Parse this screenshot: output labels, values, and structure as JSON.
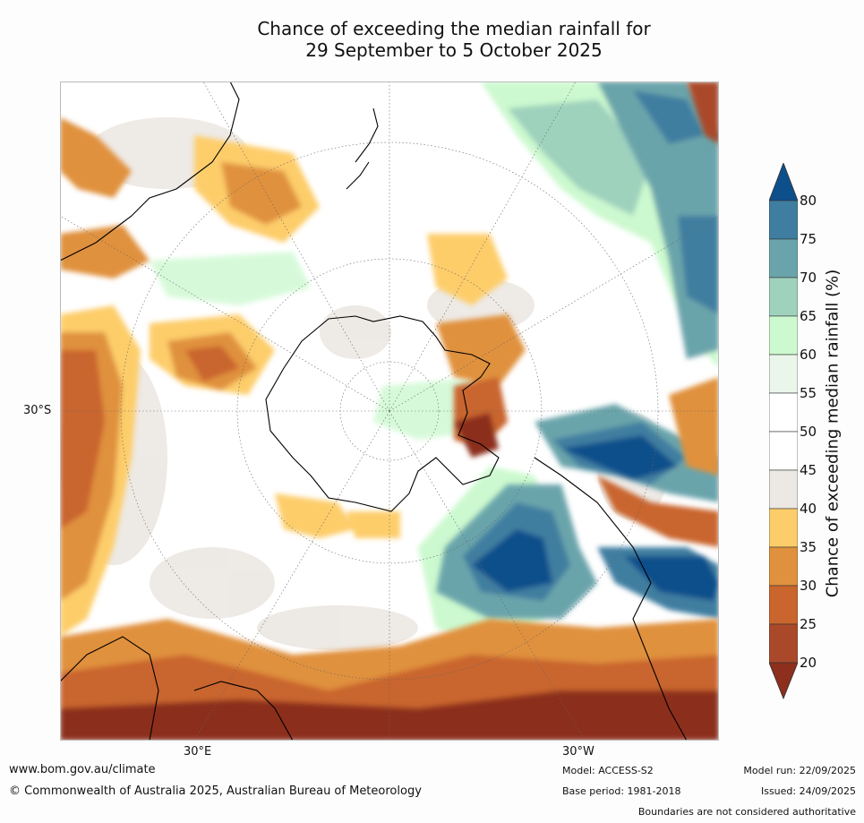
{
  "title": {
    "line1": "Chance of exceeding the median rainfall for",
    "line2": "29 September to 5 October 2025"
  },
  "map_labels": {
    "lat_30s": "30°S",
    "lon_30e": "30°E",
    "lon_30w": "30°W"
  },
  "legend": {
    "label": "Chance of exceeding median rainfall (%)",
    "ticks": [
      "80",
      "75",
      "70",
      "65",
      "60",
      "55",
      "50",
      "45",
      "40",
      "35",
      "30",
      "25",
      "20"
    ],
    "colors": {
      "above_80": "#0d4f8b",
      "75_80": "#3f7ea0",
      "70_75": "#6aa4ab",
      "65_70": "#9fd2bd",
      "60_65": "#ccf9cf",
      "55_60": "#eaf6ea",
      "50_55": "#ffffff",
      "45_50": "#ffffff",
      "40_45": "#ece8e3",
      "35_40": "#fdcd6b",
      "30_35": "#e0913e",
      "25_30": "#c9652d",
      "20_25": "#a9492a",
      "below_20": "#8c2f1c"
    }
  },
  "footer": {
    "website": "www.bom.gov.au/climate",
    "copyright": "© Commonwealth of Australia 2025, Australian Bureau of Meteorology",
    "model": "Model: ACCESS-S2",
    "base_period": "Base period: 1981-2018",
    "model_run": "Model run: 22/09/2025",
    "issued": "Issued: 24/09/2025",
    "disclaimer": "Boundaries are not considered authoritative"
  }
}
